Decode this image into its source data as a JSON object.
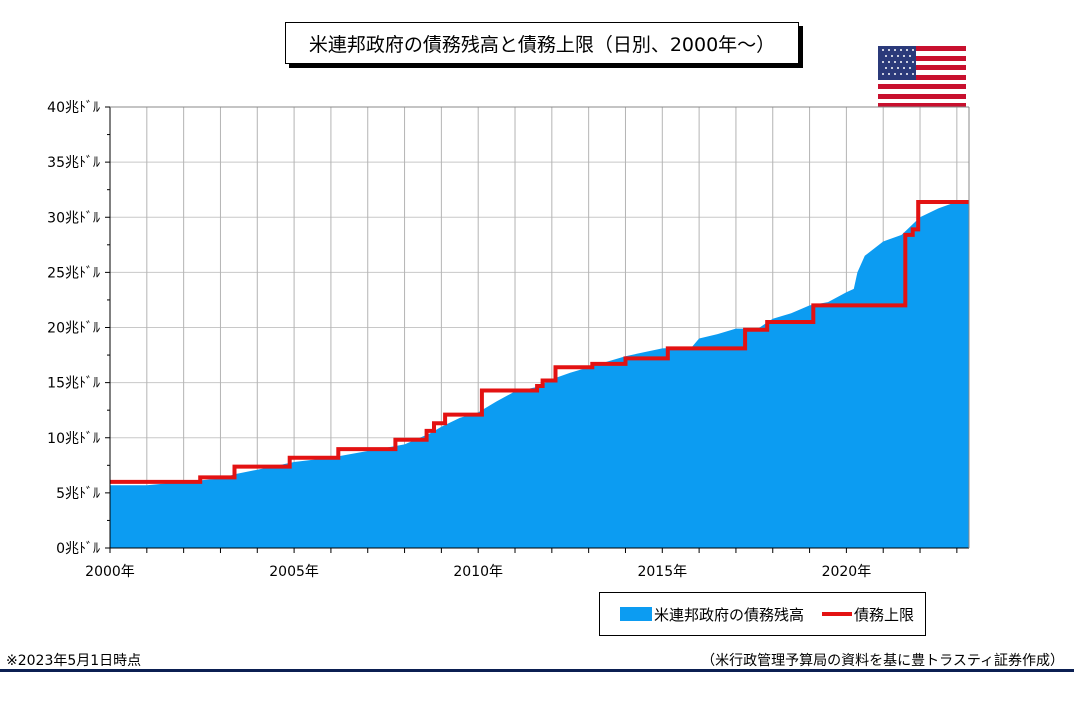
{
  "chart_title": "米連邦政府の債務残高と債務上限（日別、2000年～）",
  "colors": {
    "debt": "#0c9cf2",
    "limit": "#e31212",
    "rule": "#0b1f52"
  },
  "legend": {
    "debt_label": "米連邦政府の債務残高",
    "limit_label": "債務上限"
  },
  "footnote_left": "※2023年5月1日時点",
  "footnote_right": "（米行政管理予算局の資料を基に豊トラスティ証券作成）",
  "flag_icon": "us-flag-icon",
  "chart_data": {
    "type": "area",
    "title": "米連邦政府の債務残高と債務上限（日別、2000年～）",
    "xlim": [
      2000.0,
      2023.33
    ],
    "ylim": [
      0,
      40
    ],
    "y_unit": "兆ﾄﾞﾙ",
    "y_ticks": [
      {
        "v": 0,
        "label": "0兆ﾄﾞﾙ"
      },
      {
        "v": 5,
        "label": "5兆ﾄﾞﾙ"
      },
      {
        "v": 10,
        "label": "10兆ﾄﾞﾙ"
      },
      {
        "v": 15,
        "label": "15兆ﾄﾞﾙ"
      },
      {
        "v": 20,
        "label": "20兆ﾄﾞﾙ"
      },
      {
        "v": 25,
        "label": "25兆ﾄﾞﾙ"
      },
      {
        "v": 30,
        "label": "30兆ﾄﾞﾙ"
      },
      {
        "v": 35,
        "label": "35兆ﾄﾞﾙ"
      },
      {
        "v": 40,
        "label": "40兆ﾄﾞﾙ"
      }
    ],
    "x_ticks": [
      {
        "v": 2000,
        "label": "2000年"
      },
      {
        "v": 2005,
        "label": "2005年"
      },
      {
        "v": 2010,
        "label": "2010年"
      },
      {
        "v": 2015,
        "label": "2015年"
      },
      {
        "v": 2020,
        "label": "2020年"
      }
    ],
    "grid": true,
    "legend_position": "bottom-right",
    "series": [
      {
        "name": "米連邦政府の債務残高",
        "x": [
          2000.0,
          2001.0,
          2002.0,
          2003.0,
          2003.4,
          2004.0,
          2005.0,
          2006.0,
          2007.0,
          2008.0,
          2008.7,
          2009.0,
          2009.5,
          2010.0,
          2010.5,
          2011.0,
          2011.6,
          2012.0,
          2012.5,
          2013.0,
          2013.4,
          2014.0,
          2015.0,
          2015.8,
          2016.0,
          2016.5,
          2017.0,
          2017.6,
          2018.0,
          2018.5,
          2019.0,
          2019.5,
          2020.0,
          2020.2,
          2020.3,
          2020.5,
          2021.0,
          2021.5,
          2022.0,
          2022.5,
          2023.0,
          2023.33
        ],
        "y": [
          5.7,
          5.7,
          6.0,
          6.3,
          6.7,
          7.1,
          7.8,
          8.2,
          8.8,
          9.4,
          10.4,
          11.0,
          11.8,
          12.3,
          13.3,
          14.2,
          14.6,
          15.3,
          15.9,
          16.4,
          16.8,
          17.4,
          18.1,
          18.2,
          19.0,
          19.4,
          19.9,
          19.9,
          20.8,
          21.3,
          22.0,
          22.3,
          23.2,
          23.5,
          25.0,
          26.5,
          27.8,
          28.4,
          30.0,
          30.8,
          31.4,
          31.45
        ]
      },
      {
        "name": "債務上限",
        "x": [
          2000.0,
          2002.45,
          2002.45,
          2003.38,
          2003.38,
          2004.88,
          2004.88,
          2006.2,
          2006.2,
          2007.75,
          2007.75,
          2008.6,
          2008.6,
          2008.8,
          2008.8,
          2009.1,
          2009.1,
          2010.1,
          2010.1,
          2011.6,
          2011.6,
          2011.75,
          2011.75,
          2012.1,
          2012.1,
          2013.1,
          2013.1,
          2014.0,
          2014.0,
          2015.15,
          2015.15,
          2017.25,
          2017.25,
          2017.85,
          2017.85,
          2019.1,
          2019.1,
          2021.6,
          2021.6,
          2021.8,
          2021.8,
          2021.95,
          2021.95,
          2023.33
        ],
        "y": [
          6.0,
          6.0,
          6.4,
          6.4,
          7.38,
          7.38,
          8.18,
          8.18,
          8.97,
          8.97,
          9.82,
          9.82,
          10.62,
          10.62,
          11.32,
          11.32,
          12.1,
          12.1,
          14.29,
          14.29,
          14.69,
          14.69,
          15.19,
          15.19,
          16.39,
          16.39,
          16.7,
          16.7,
          17.2,
          17.2,
          18.1,
          18.1,
          19.8,
          19.8,
          20.5,
          20.5,
          22.0,
          22.0,
          28.4,
          28.4,
          28.9,
          28.9,
          31.38,
          31.38
        ]
      }
    ]
  }
}
